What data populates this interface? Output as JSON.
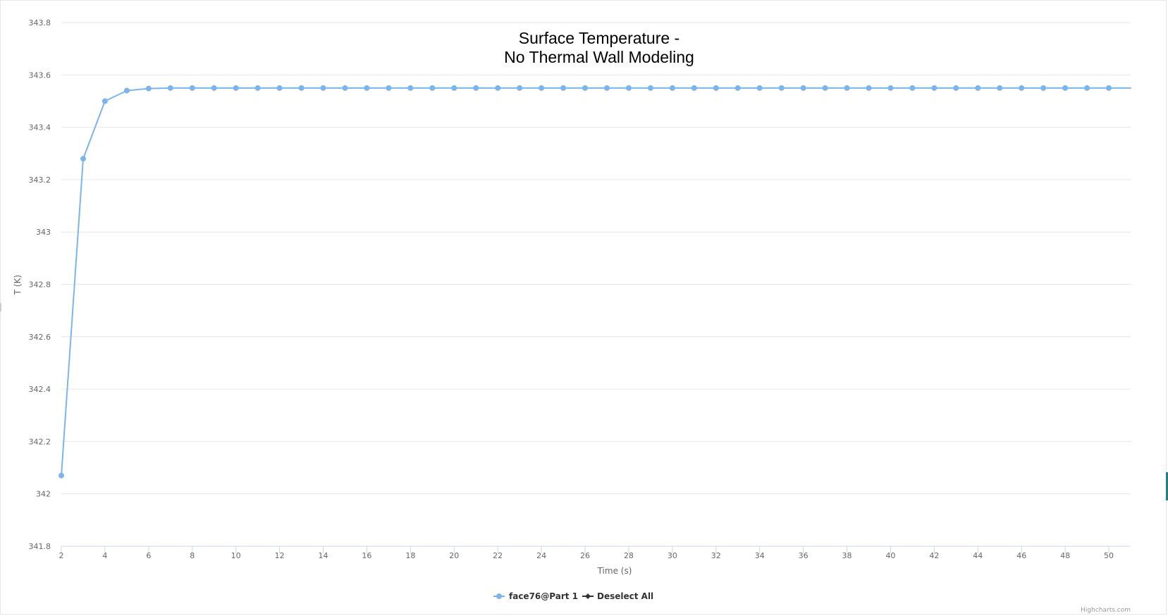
{
  "chart_data": {
    "type": "line",
    "title_lines": [
      "Surface Temperature -",
      "No Thermal Wall Modeling"
    ],
    "xlabel": "Time (s)",
    "ylabel": "T (K)",
    "xlim": [
      2,
      51
    ],
    "ylim": [
      341.8,
      343.8
    ],
    "x_ticks": [
      2,
      4,
      6,
      8,
      10,
      12,
      14,
      16,
      18,
      20,
      22,
      24,
      26,
      28,
      30,
      32,
      34,
      36,
      38,
      40,
      42,
      44,
      46,
      48,
      50
    ],
    "y_ticks": [
      341.8,
      342,
      342.2,
      342.4,
      342.6,
      342.8,
      343,
      343.2,
      343.4,
      343.6,
      343.8
    ],
    "y_tick_labels": [
      "341.8",
      "342",
      "342.2",
      "342.4",
      "342.6",
      "342.8",
      "343",
      "343.2",
      "343.4",
      "343.6",
      "343.8"
    ],
    "grid": true,
    "legend_position": "bottom-center",
    "series": [
      {
        "name": "face76@Part 1",
        "color": "#7cb5ec",
        "x": [
          2,
          3,
          4,
          5,
          6,
          7,
          8,
          9,
          10,
          11,
          12,
          13,
          14,
          15,
          16,
          17,
          18,
          19,
          20,
          21,
          22,
          23,
          24,
          25,
          26,
          27,
          28,
          29,
          30,
          31,
          32,
          33,
          34,
          35,
          36,
          37,
          38,
          39,
          40,
          41,
          42,
          43,
          44,
          45,
          46,
          47,
          48,
          49,
          50
        ],
        "values": [
          342.07,
          343.28,
          343.5,
          343.54,
          343.548,
          343.55,
          343.55,
          343.55,
          343.55,
          343.55,
          343.55,
          343.55,
          343.55,
          343.55,
          343.55,
          343.55,
          343.55,
          343.55,
          343.55,
          343.55,
          343.55,
          343.55,
          343.55,
          343.55,
          343.55,
          343.55,
          343.55,
          343.55,
          343.55,
          343.55,
          343.55,
          343.55,
          343.55,
          343.55,
          343.55,
          343.55,
          343.55,
          343.55,
          343.55,
          343.55,
          343.55,
          343.55,
          343.55,
          343.55,
          343.55,
          343.55,
          343.55,
          343.55,
          343.55
        ]
      }
    ]
  },
  "legend": {
    "items": [
      {
        "label": "face76@Part 1",
        "color": "#7cb5ec",
        "icon": "circle-marker-icon"
      },
      {
        "label": "Deselect All",
        "color": "#333333",
        "icon": "diamond-marker-icon"
      }
    ]
  },
  "credits": "Highcharts.com"
}
